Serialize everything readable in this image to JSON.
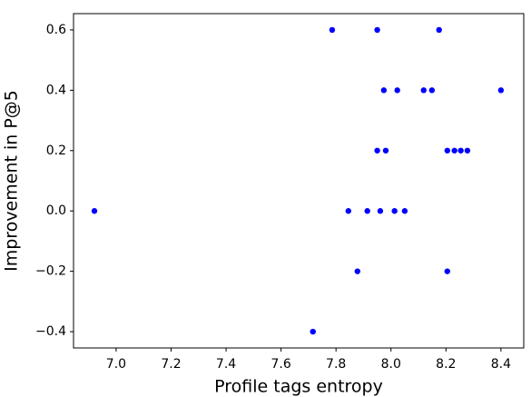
{
  "chart_data": {
    "type": "scatter",
    "x_label": "Profile tags entropy",
    "y_label": "Improvement in P@5",
    "color": "#0000ff",
    "x": [
      6.921,
      7.786,
      7.95,
      8.175,
      7.974,
      8.023,
      8.119,
      8.149,
      8.4,
      7.95,
      7.981,
      8.205,
      8.231,
      8.254,
      8.278,
      7.845,
      7.914,
      7.961,
      8.013,
      8.05,
      7.878,
      8.205,
      7.716
    ],
    "values": [
      0,
      0.6,
      0.6,
      0.6,
      0.4,
      0.4,
      0.4,
      0.4,
      0.4,
      0.2,
      0.2,
      0.2,
      0.2,
      0.2,
      0.2,
      0,
      0,
      0,
      0,
      0,
      -0.2,
      -0.2,
      -0.4
    ],
    "xlim": [
      6.845,
      8.483
    ],
    "ylim": [
      -0.454,
      0.654
    ],
    "xticks": [
      {
        "value": 7.0,
        "label": "7.0"
      },
      7.2,
      7.4,
      7.6,
      7.8,
      {
        "value": 8.0,
        "label": "8.0"
      },
      8.2,
      8.4
    ],
    "yticks": [
      {
        "value": -0.4,
        "label": "−0.4"
      },
      {
        "value": -0.2,
        "label": "−0.2"
      },
      {
        "value": 0.0,
        "label": "0.0"
      },
      0.2,
      0.4,
      0.6
    ]
  }
}
